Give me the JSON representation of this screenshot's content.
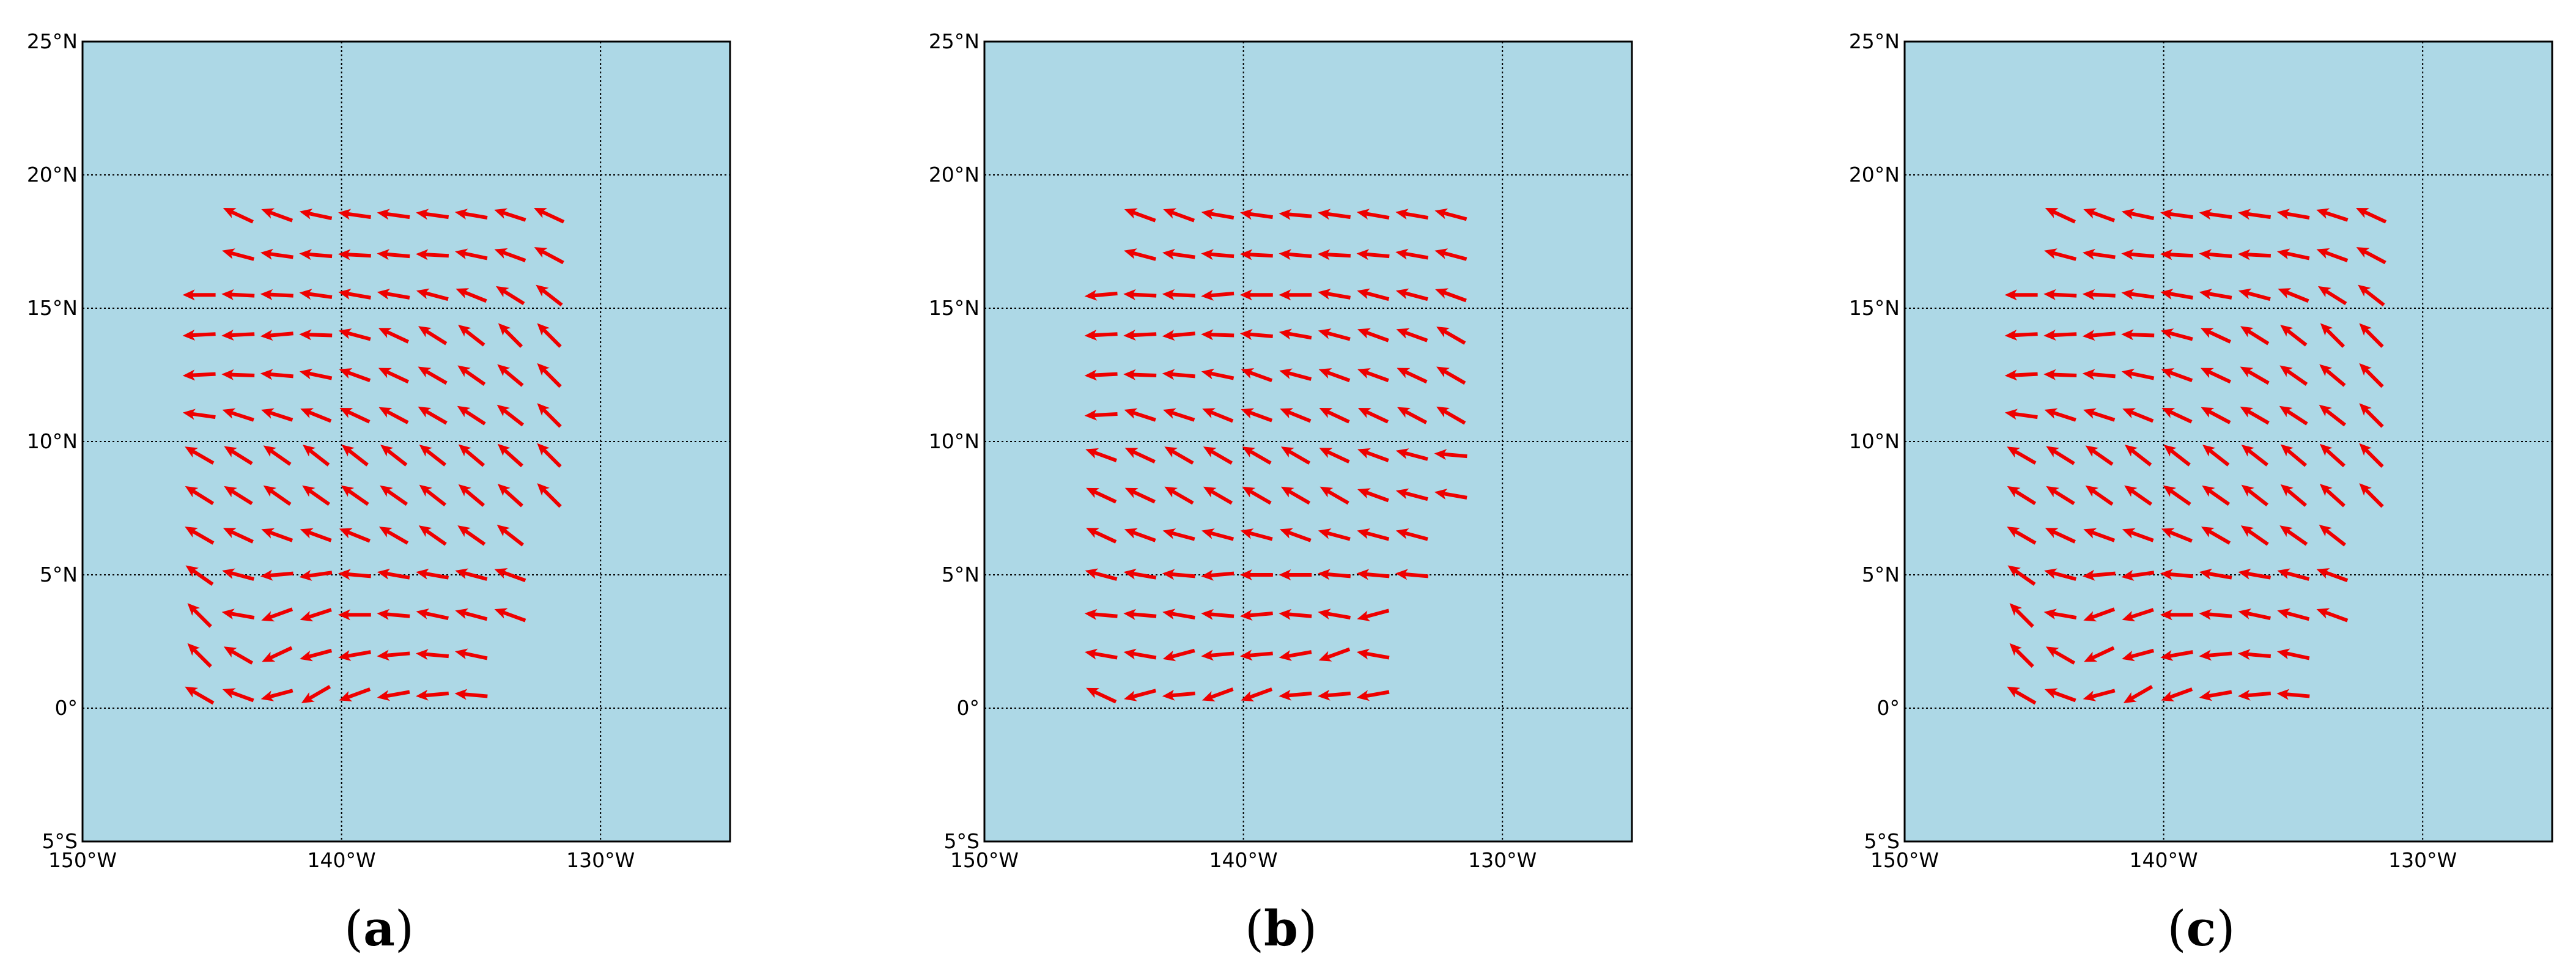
{
  "colors": {
    "ocean": "#add8e6",
    "arrow": "#ee0000",
    "grid": "#000000"
  },
  "chart_data": [
    {
      "type": "quiver",
      "panel": "a",
      "panel_label": "a",
      "xlim": [
        -150,
        -125
      ],
      "ylim": [
        -5,
        25
      ],
      "xticks": [
        {
          "value": -150,
          "label": "150°W"
        },
        {
          "value": -140,
          "label": "140°W"
        },
        {
          "value": -130,
          "label": "130°W"
        }
      ],
      "yticks": [
        {
          "value": -5,
          "label": "5°S"
        },
        {
          "value": 0,
          "label": "0°"
        },
        {
          "value": 5,
          "label": "5°N"
        },
        {
          "value": 10,
          "label": "10°N"
        },
        {
          "value": 15,
          "label": "15°N"
        },
        {
          "value": 20,
          "label": "20°N"
        },
        {
          "value": 25,
          "label": "25°N"
        }
      ],
      "grid_lines_x": [
        -140,
        -130
      ],
      "grid_lines_y": [
        0,
        5,
        10,
        15,
        20
      ],
      "rows": [
        {
          "lat": 18.5,
          "lon_start": -144,
          "angles": [
            25,
            20,
            12,
            8,
            8,
            8,
            10,
            18,
            25
          ]
        },
        {
          "lat": 17.0,
          "lon_start": -144,
          "angles": [
            15,
            8,
            5,
            3,
            5,
            3,
            12,
            20,
            28
          ]
        },
        {
          "lat": 15.5,
          "lon_start": -145.5,
          "angles": [
            0,
            3,
            3,
            8,
            10,
            10,
            15,
            22,
            32,
            38
          ]
        },
        {
          "lat": 14.0,
          "lon_start": -145.5,
          "angles": [
            -3,
            -3,
            -5,
            2,
            15,
            25,
            32,
            38,
            45,
            45
          ]
        },
        {
          "lat": 12.5,
          "lon_start": -145.5,
          "angles": [
            -3,
            2,
            5,
            12,
            20,
            25,
            30,
            35,
            40,
            45
          ]
        },
        {
          "lat": 11.0,
          "lon_start": -145.5,
          "angles": [
            8,
            18,
            18,
            22,
            25,
            28,
            30,
            33,
            38,
            45
          ]
        },
        {
          "lat": 9.5,
          "lon_start": -145.5,
          "angles": [
            30,
            32,
            35,
            38,
            38,
            38,
            38,
            40,
            42,
            45
          ]
        },
        {
          "lat": 8.0,
          "lon_start": -145.5,
          "angles": [
            32,
            32,
            35,
            35,
            35,
            35,
            38,
            40,
            42,
            45
          ]
        },
        {
          "lat": 6.5,
          "lon_start": -145.5,
          "angles": [
            30,
            25,
            20,
            20,
            22,
            30,
            35,
            35,
            38
          ]
        },
        {
          "lat": 5.0,
          "lon_start": -145.5,
          "angles": [
            35,
            15,
            -5,
            -8,
            5,
            10,
            10,
            15,
            20
          ]
        },
        {
          "lat": 3.5,
          "lon_start": -145.5,
          "angles": [
            45,
            10,
            -20,
            -18,
            0,
            5,
            12,
            15,
            20
          ]
        },
        {
          "lat": 2.0,
          "lon_start": -145.5,
          "angles": [
            45,
            30,
            -25,
            -15,
            -10,
            -5,
            5,
            12
          ]
        },
        {
          "lat": 0.5,
          "lon_start": -145.5,
          "angles": [
            30,
            20,
            -15,
            -30,
            -20,
            -10,
            -5,
            5
          ]
        }
      ]
    },
    {
      "type": "quiver",
      "panel": "b",
      "panel_label": "b",
      "xlim": [
        -150,
        -125
      ],
      "ylim": [
        -5,
        25
      ],
      "xticks": [
        {
          "value": -150,
          "label": "150°W"
        },
        {
          "value": -140,
          "label": "140°W"
        },
        {
          "value": -130,
          "label": "130°W"
        }
      ],
      "yticks": [
        {
          "value": -5,
          "label": "5°S"
        },
        {
          "value": 0,
          "label": "0°"
        },
        {
          "value": 5,
          "label": "5°N"
        },
        {
          "value": 10,
          "label": "10°N"
        },
        {
          "value": 15,
          "label": "15°N"
        },
        {
          "value": 20,
          "label": "20°N"
        },
        {
          "value": 25,
          "label": "25°N"
        }
      ],
      "grid_lines_x": [
        -140,
        -130
      ],
      "grid_lines_y": [
        0,
        5,
        10,
        15,
        20
      ],
      "rows": [
        {
          "lat": 18.5,
          "lon_start": -144,
          "angles": [
            20,
            20,
            10,
            8,
            5,
            8,
            10,
            10,
            15
          ]
        },
        {
          "lat": 17.0,
          "lon_start": -144,
          "angles": [
            15,
            8,
            5,
            3,
            5,
            3,
            5,
            10,
            15
          ]
        },
        {
          "lat": 15.5,
          "lon_start": -145.5,
          "angles": [
            -5,
            3,
            3,
            -5,
            0,
            0,
            10,
            15,
            15,
            20
          ]
        },
        {
          "lat": 14.0,
          "lon_start": -145.5,
          "angles": [
            -3,
            -3,
            -5,
            2,
            5,
            10,
            15,
            20,
            20,
            30
          ]
        },
        {
          "lat": 12.5,
          "lon_start": -145.5,
          "angles": [
            -3,
            2,
            5,
            12,
            20,
            15,
            20,
            20,
            25,
            30
          ]
        },
        {
          "lat": 11.0,
          "lon_start": -145.5,
          "angles": [
            -3,
            18,
            18,
            22,
            20,
            22,
            25,
            25,
            28,
            30
          ]
        },
        {
          "lat": 9.5,
          "lon_start": -145.5,
          "angles": [
            20,
            25,
            30,
            30,
            30,
            30,
            25,
            20,
            15,
            5
          ]
        },
        {
          "lat": 8.0,
          "lon_start": -145.5,
          "angles": [
            25,
            25,
            30,
            30,
            30,
            30,
            30,
            20,
            15,
            10
          ]
        },
        {
          "lat": 6.5,
          "lon_start": -145.5,
          "angles": [
            25,
            20,
            15,
            15,
            15,
            20,
            15,
            15,
            15
          ]
        },
        {
          "lat": 5.0,
          "lon_start": -145.5,
          "angles": [
            15,
            10,
            5,
            -5,
            0,
            0,
            5,
            5,
            5
          ]
        },
        {
          "lat": 3.5,
          "lon_start": -145.5,
          "angles": [
            5,
            5,
            10,
            5,
            -5,
            5,
            10,
            -15
          ]
        },
        {
          "lat": 2.0,
          "lon_start": -145.5,
          "angles": [
            10,
            10,
            -15,
            -5,
            -5,
            -10,
            -20,
            10
          ]
        },
        {
          "lat": 0.5,
          "lon_start": -145.5,
          "angles": [
            25,
            -15,
            -5,
            -20,
            -20,
            -5,
            -5,
            -10
          ]
        }
      ]
    },
    {
      "type": "quiver",
      "panel": "c",
      "panel_label": "c",
      "xlim": [
        -150,
        -125
      ],
      "ylim": [
        -5,
        25
      ],
      "xticks": [
        {
          "value": -150,
          "label": "150°W"
        },
        {
          "value": -140,
          "label": "140°W"
        },
        {
          "value": -130,
          "label": "130°W"
        }
      ],
      "yticks": [
        {
          "value": -5,
          "label": "5°S"
        },
        {
          "value": 0,
          "label": "0°"
        },
        {
          "value": 5,
          "label": "5°N"
        },
        {
          "value": 10,
          "label": "10°N"
        },
        {
          "value": 15,
          "label": "15°N"
        },
        {
          "value": 20,
          "label": "20°N"
        },
        {
          "value": 25,
          "label": "25°N"
        }
      ],
      "grid_lines_x": [
        -140,
        -130
      ],
      "grid_lines_y": [
        0,
        5,
        10,
        15,
        20
      ],
      "rows": [
        {
          "lat": 18.5,
          "lon_start": -144,
          "angles": [
            25,
            20,
            12,
            8,
            8,
            8,
            10,
            18,
            25
          ]
        },
        {
          "lat": 17.0,
          "lon_start": -144,
          "angles": [
            15,
            8,
            5,
            3,
            5,
            3,
            12,
            20,
            28
          ]
        },
        {
          "lat": 15.5,
          "lon_start": -145.5,
          "angles": [
            0,
            3,
            3,
            8,
            10,
            10,
            15,
            22,
            32,
            38
          ]
        },
        {
          "lat": 14.0,
          "lon_start": -145.5,
          "angles": [
            -3,
            -3,
            -5,
            2,
            15,
            25,
            32,
            38,
            45,
            45
          ]
        },
        {
          "lat": 12.5,
          "lon_start": -145.5,
          "angles": [
            -3,
            2,
            5,
            12,
            20,
            25,
            30,
            35,
            40,
            45
          ]
        },
        {
          "lat": 11.0,
          "lon_start": -145.5,
          "angles": [
            8,
            18,
            18,
            22,
            25,
            28,
            30,
            33,
            38,
            45
          ]
        },
        {
          "lat": 9.5,
          "lon_start": -145.5,
          "angles": [
            30,
            32,
            35,
            38,
            38,
            38,
            38,
            40,
            42,
            45
          ]
        },
        {
          "lat": 8.0,
          "lon_start": -145.5,
          "angles": [
            32,
            32,
            35,
            35,
            35,
            35,
            38,
            40,
            42,
            45
          ]
        },
        {
          "lat": 6.5,
          "lon_start": -145.5,
          "angles": [
            30,
            25,
            20,
            20,
            22,
            30,
            35,
            35,
            38
          ]
        },
        {
          "lat": 5.0,
          "lon_start": -145.5,
          "angles": [
            35,
            15,
            -5,
            -8,
            5,
            10,
            10,
            15,
            20
          ]
        },
        {
          "lat": 3.5,
          "lon_start": -145.5,
          "angles": [
            45,
            10,
            -20,
            -18,
            0,
            5,
            12,
            15,
            20
          ]
        },
        {
          "lat": 2.0,
          "lon_start": -145.5,
          "angles": [
            45,
            30,
            -25,
            -15,
            -10,
            -5,
            5,
            12
          ]
        },
        {
          "lat": 0.5,
          "lon_start": -145.5,
          "angles": [
            30,
            20,
            -15,
            -30,
            -20,
            -10,
            -5,
            5
          ]
        }
      ]
    }
  ]
}
